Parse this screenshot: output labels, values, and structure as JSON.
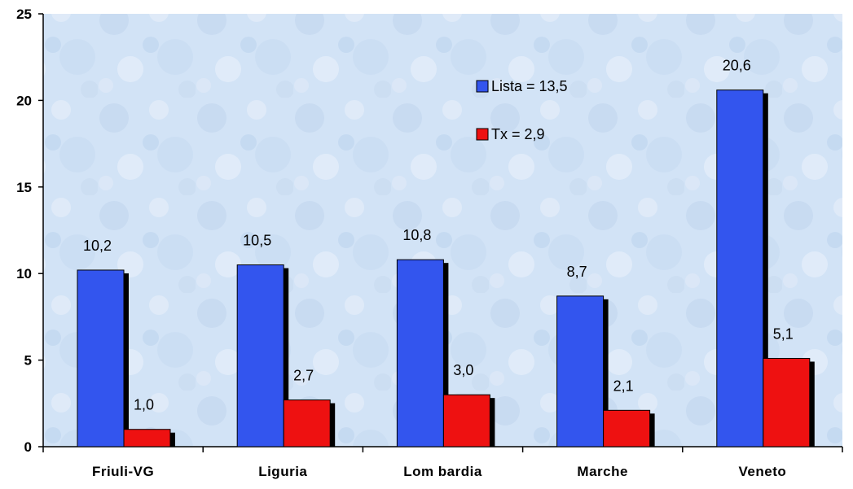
{
  "colors": {
    "series_lista": "#3355ee",
    "series_tx": "#ee1111",
    "shadow": "#000000",
    "plot_background": "#cfe1f5"
  },
  "chart_data": {
    "type": "bar",
    "title": "",
    "xlabel": "",
    "ylabel": "",
    "ylim": [
      0,
      25
    ],
    "yticks": [
      "0",
      "5",
      "10",
      "15",
      "20",
      "25"
    ],
    "ytick_values": [
      0,
      5,
      10,
      15,
      20,
      25
    ],
    "categories": [
      "Friuli-VG",
      "Liguria",
      "Lom bardia",
      "Marche",
      "Veneto"
    ],
    "series": [
      {
        "name": "Lista = 13,5",
        "values": [
          10.2,
          10.5,
          10.8,
          8.7,
          20.6
        ],
        "labels": [
          "10,2",
          "10,5",
          "10,8",
          "8,7",
          "20,6"
        ]
      },
      {
        "name": "Tx = 2,9",
        "values": [
          1.0,
          2.7,
          3.0,
          2.1,
          5.1
        ],
        "labels": [
          "1,0",
          "2,7",
          "3,0",
          "2,1",
          "5,1"
        ]
      }
    ],
    "legend_position": "top-right",
    "grid": false
  }
}
